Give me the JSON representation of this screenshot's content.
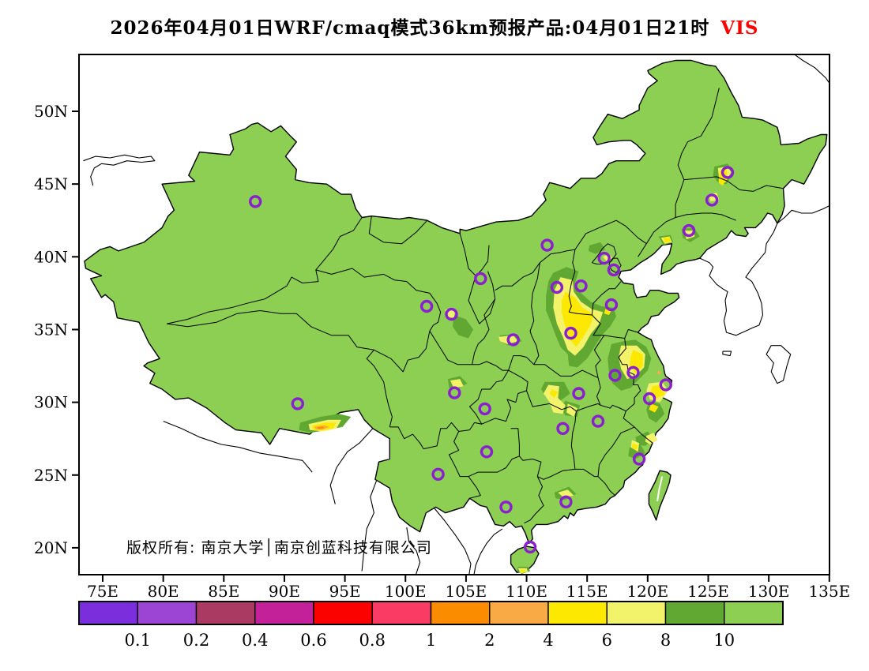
{
  "title": {
    "text": "2026年04月01日WRF/cmaq模式36km预报产品:04月01日21时",
    "variable": "VIS",
    "variable_color": "#fb0100"
  },
  "map": {
    "copyright": "版权所有: 南京大学│南京创蓝科技有限公司",
    "base_color": "#8dcf53",
    "sea_color": "#ffffff",
    "outline_color": "#000000",
    "marker_color": "#8a1fd0",
    "lat_ticks": [
      {
        "label": "50N",
        "lat": 50
      },
      {
        "label": "45N",
        "lat": 45
      },
      {
        "label": "40N",
        "lat": 40
      },
      {
        "label": "35N",
        "lat": 35
      },
      {
        "label": "30N",
        "lat": 30
      },
      {
        "label": "25N",
        "lat": 25
      },
      {
        "label": "20N",
        "lat": 20
      }
    ],
    "lon_ticks": [
      {
        "label": "75E",
        "lon": 75
      },
      {
        "label": "80E",
        "lon": 80
      },
      {
        "label": "85E",
        "lon": 85
      },
      {
        "label": "90E",
        "lon": 90
      },
      {
        "label": "95E",
        "lon": 95
      },
      {
        "label": "100E",
        "lon": 100
      },
      {
        "label": "105E",
        "lon": 105
      },
      {
        "label": "110E",
        "lon": 110
      },
      {
        "label": "115E",
        "lon": 115
      },
      {
        "label": "120E",
        "lon": 120
      },
      {
        "label": "125E",
        "lon": 125
      },
      {
        "label": "130E",
        "lon": 130
      },
      {
        "label": "135E",
        "lon": 135
      }
    ],
    "city_markers": [
      {
        "name": "Urumqi",
        "lon": 87.6,
        "lat": 43.8
      },
      {
        "name": "Harbin",
        "lon": 126.6,
        "lat": 45.8
      },
      {
        "name": "Changchun",
        "lon": 125.3,
        "lat": 43.9
      },
      {
        "name": "Shenyang",
        "lon": 123.4,
        "lat": 41.8
      },
      {
        "name": "Hohhot",
        "lon": 111.7,
        "lat": 40.8
      },
      {
        "name": "Beijing",
        "lon": 116.4,
        "lat": 39.9
      },
      {
        "name": "Tianjin",
        "lon": 117.2,
        "lat": 39.1
      },
      {
        "name": "Shijiazhuang",
        "lon": 114.5,
        "lat": 38.0
      },
      {
        "name": "Taiyuan",
        "lon": 112.5,
        "lat": 37.9
      },
      {
        "name": "Yinchuan",
        "lon": 106.2,
        "lat": 38.5
      },
      {
        "name": "Jinan",
        "lon": 117.0,
        "lat": 36.7
      },
      {
        "name": "Xining",
        "lon": 101.75,
        "lat": 36.6
      },
      {
        "name": "Lanzhou",
        "lon": 103.8,
        "lat": 36.05
      },
      {
        "name": "Zhengzhou",
        "lon": 113.65,
        "lat": 34.75
      },
      {
        "name": "Xian",
        "lon": 108.9,
        "lat": 34.3
      },
      {
        "name": "Nanjing",
        "lon": 118.8,
        "lat": 32.05
      },
      {
        "name": "Hefei",
        "lon": 117.3,
        "lat": 31.85
      },
      {
        "name": "Shanghai",
        "lon": 121.5,
        "lat": 31.2
      },
      {
        "name": "Wuhan",
        "lon": 114.3,
        "lat": 30.6
      },
      {
        "name": "Hangzhou",
        "lon": 120.15,
        "lat": 30.25
      },
      {
        "name": "Chengdu",
        "lon": 104.05,
        "lat": 30.65
      },
      {
        "name": "Chongqing",
        "lon": 106.55,
        "lat": 29.55
      },
      {
        "name": "Lhasa",
        "lon": 91.1,
        "lat": 29.9
      },
      {
        "name": "Nanchang",
        "lon": 115.9,
        "lat": 28.7
      },
      {
        "name": "Changsha",
        "lon": 113.0,
        "lat": 28.2
      },
      {
        "name": "Guiyang",
        "lon": 106.7,
        "lat": 26.6
      },
      {
        "name": "Fuzhou",
        "lon": 119.3,
        "lat": 26.1
      },
      {
        "name": "Kunming",
        "lon": 102.7,
        "lat": 25.05
      },
      {
        "name": "Guangzhou",
        "lon": 113.25,
        "lat": 23.15
      },
      {
        "name": "Nanning",
        "lon": 108.3,
        "lat": 22.8
      },
      {
        "name": "Haikou",
        "lon": 110.3,
        "lat": 20.05
      }
    ]
  },
  "colorbar": {
    "colors": [
      "#7b2fdc",
      "#9c45d4",
      "#aa3a62",
      "#c32199",
      "#fb0100",
      "#fa3c64",
      "#fb8c00",
      "#faaa45",
      "#fce800",
      "#f2f26b",
      "#60a832",
      "#8dcf53"
    ],
    "labels": [
      "0.1",
      "0.2",
      "0.4",
      "0.6",
      "0.8",
      "1",
      "2",
      "4",
      "6",
      "8",
      "10"
    ]
  }
}
